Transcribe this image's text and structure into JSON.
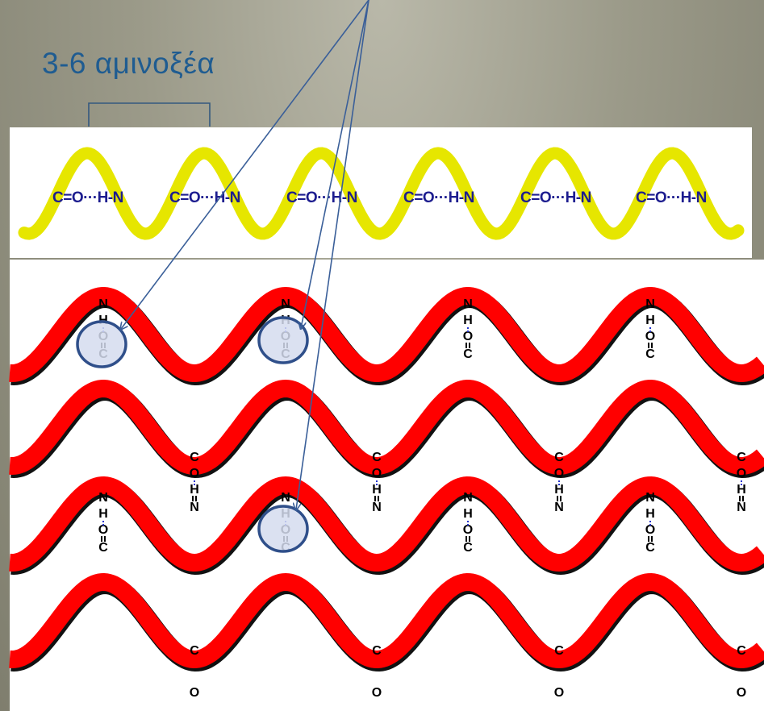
{
  "diagram": {
    "title": "3-6 αμινοξέα",
    "helix_label": "C=O···H-N",
    "bottom_chain": [
      "N",
      "H",
      "O",
      "C"
    ],
    "top_chain": [
      "C",
      "O",
      "H",
      "N"
    ],
    "colors": {
      "title": "#1f5c91",
      "helix": "#e6e600",
      "sheet": "#ff0000",
      "arrow": "#3a5f99",
      "circle_fill": "#d5dcee",
      "circle_stroke": "#2f4f8a",
      "hbond": "#2233cc"
    },
    "highlight_markers": 3,
    "arrows": 3
  }
}
